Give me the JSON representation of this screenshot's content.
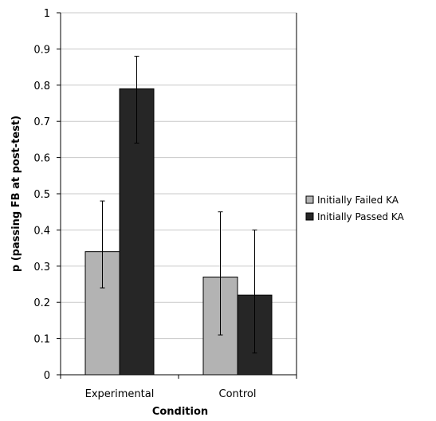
{
  "chart_data": {
    "type": "bar",
    "xlabel": "Condition",
    "ylabel": "p (passing FB at post-test)",
    "categories": [
      "Experimental",
      "Control"
    ],
    "series": [
      {
        "name": "Initially Failed KA",
        "values": [
          0.34,
          0.27
        ],
        "error_low": [
          0.24,
          0.11
        ],
        "error_high": [
          0.48,
          0.45
        ],
        "color": "#b3b3b3"
      },
      {
        "name": "Initially Passed KA",
        "values": [
          0.79,
          0.22
        ],
        "error_low": [
          0.64,
          0.06
        ],
        "error_high": [
          0.88,
          0.4
        ],
        "color": "#262626"
      }
    ],
    "ylim": [
      0,
      1
    ],
    "yticks": [
      "0",
      "0.1",
      "0.2",
      "0.3",
      "0.4",
      "0.5",
      "0.6",
      "0.7",
      "0.8",
      "0.9",
      "1"
    ],
    "grid": true,
    "legend_position": "right"
  }
}
